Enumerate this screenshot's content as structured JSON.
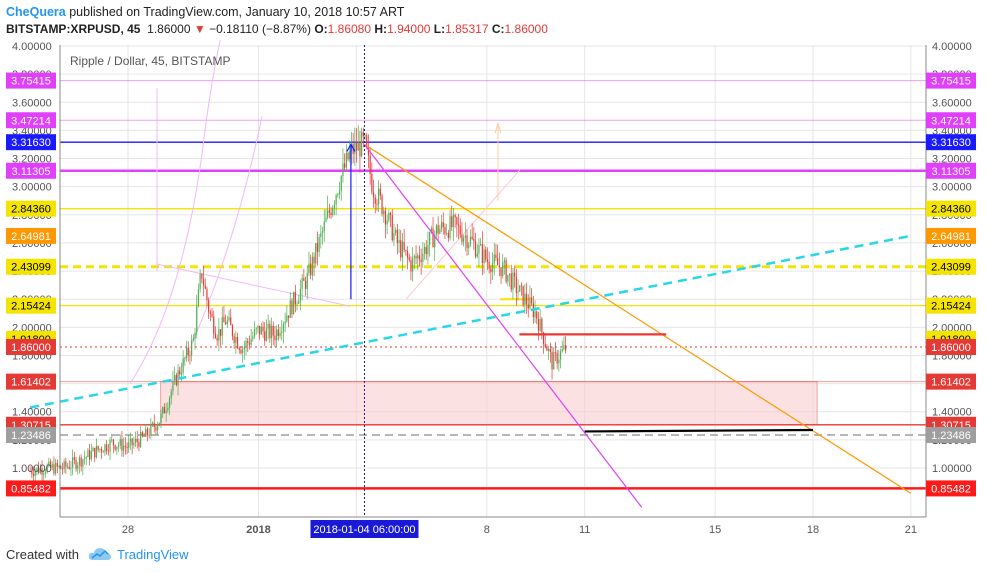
{
  "header": {
    "author": "CheQuera",
    "published_text": "published on TradingView.com, January 10, 2018 10:57 ART",
    "symbol": "BITSTAMP:XRPUSD, 45",
    "last": "1.86000",
    "change": "−0.18110 (−8.87%)",
    "o_label": "O:",
    "o_value": "1.86080",
    "h_label": "H:",
    "h_value": "1.94000",
    "l_label": "L:",
    "l_value": "1.85317",
    "c_label": "C:",
    "c_value": "1.86000"
  },
  "footer": {
    "created_with": "Created with",
    "brand": "TradingView"
  },
  "colors": {
    "up": "#4caf50",
    "down": "#e53935",
    "axis": "#555555",
    "grid": "#e6e6e6",
    "cyan": "#26d7e6",
    "magenta": "#e040fb",
    "orange": "#ff9800",
    "blue": "#1a1aff"
  },
  "chart_data": {
    "type": "candlestick",
    "title": "Ripple / Dollar, 45, BITSTAMP",
    "ylim": [
      0.8,
      4.0
    ],
    "y_ticks": [
      "1.00000",
      "1.20000",
      "1.40000",
      "1.60000",
      "1.80000",
      "2.00000",
      "2.20000",
      "2.40000",
      "2.60000",
      "2.80000",
      "3.00000",
      "3.20000",
      "3.40000",
      "3.60000",
      "3.80000",
      "4.00000"
    ],
    "x_ticks": [
      {
        "label": "28",
        "date": "2017-12-28"
      },
      {
        "label": "2018",
        "date": "2018-01-01"
      },
      {
        "label": "4",
        "date": "2018-01-04"
      },
      {
        "label": "8",
        "date": "2018-01-08"
      },
      {
        "label": "11",
        "date": "2018-01-11"
      },
      {
        "label": "15",
        "date": "2018-01-15"
      },
      {
        "label": "18",
        "date": "2018-01-18"
      },
      {
        "label": "21",
        "date": "2018-01-21"
      }
    ],
    "crosshair": {
      "date_label": "2018-01-04 06:00:00",
      "date": "2018-01-04"
    },
    "horizontal_levels": [
      {
        "value": 3.75415,
        "label": "3.75415",
        "color": "#e040fb",
        "style": "thin"
      },
      {
        "value": 3.47214,
        "label": "3.47214",
        "color": "#e040fb",
        "style": "thin"
      },
      {
        "value": 3.3163,
        "label": "3.31630",
        "color": "#1a1aff",
        "style": "solid"
      },
      {
        "value": 3.11305,
        "label": "3.11305",
        "color": "#e040fb",
        "style": "thick"
      },
      {
        "value": 2.8436,
        "label": "2.84360",
        "color": "#f5e400",
        "style": "solid"
      },
      {
        "value": 2.64981,
        "label": "2.64981",
        "color": "#ff9800",
        "style": "none"
      },
      {
        "value": 2.43099,
        "label": "2.43099",
        "color": "#f5e400",
        "style": "dashed"
      },
      {
        "value": 2.15424,
        "label": "2.15424",
        "color": "#f5e400",
        "style": "solid"
      },
      {
        "value": 1.918,
        "label": "1.91800",
        "color": "#f5e400",
        "style": "none"
      },
      {
        "value": 1.86,
        "label": "1.86000",
        "color": "#e53935",
        "style": "dotted"
      },
      {
        "value": 1.61402,
        "label": "1.61402",
        "color": "#e53935",
        "style": "thin"
      },
      {
        "value": 1.30715,
        "label": "1.30715",
        "color": "#e53935",
        "style": "solid"
      },
      {
        "value": 1.23486,
        "label": "1.23486",
        "color": "#9e9e9e",
        "style": "dashed"
      },
      {
        "value": 0.85482,
        "label": "0.85482",
        "color": "#ff1a1a",
        "style": "thick"
      }
    ],
    "price_path": [
      [
        "2017-12-25T00:00",
        0.98
      ],
      [
        "2017-12-25T12:00",
        1.0
      ],
      [
        "2017-12-26T00:00",
        1.0
      ],
      [
        "2017-12-26T12:00",
        1.05
      ],
      [
        "2017-12-27T00:00",
        1.12
      ],
      [
        "2017-12-27T12:00",
        1.18
      ],
      [
        "2017-12-28T00:00",
        1.15
      ],
      [
        "2017-12-28T12:00",
        1.22
      ],
      [
        "2017-12-29T00:00",
        1.35
      ],
      [
        "2017-12-29T12:00",
        1.65
      ],
      [
        "2017-12-30T00:00",
        1.9
      ],
      [
        "2017-12-30T06:00",
        2.4
      ],
      [
        "2017-12-30T12:00",
        2.1
      ],
      [
        "2017-12-30T18:00",
        1.95
      ],
      [
        "2017-12-31T00:00",
        2.05
      ],
      [
        "2017-12-31T12:00",
        1.85
      ],
      [
        "2018-01-01T00:00",
        1.98
      ],
      [
        "2018-01-01T12:00",
        1.95
      ],
      [
        "2018-01-02T00:00",
        2.15
      ],
      [
        "2018-01-02T12:00",
        2.35
      ],
      [
        "2018-01-03T00:00",
        2.7
      ],
      [
        "2018-01-03T12:00",
        3.05
      ],
      [
        "2018-01-03T20:00",
        3.25
      ],
      [
        "2018-01-04T06:00",
        3.31
      ],
      [
        "2018-01-04T12:00",
        3.0
      ],
      [
        "2018-01-04T20:00",
        2.85
      ],
      [
        "2018-01-05T06:00",
        2.6
      ],
      [
        "2018-01-05T16:00",
        2.45
      ],
      [
        "2018-01-06T02:00",
        2.55
      ],
      [
        "2018-01-06T12:00",
        2.7
      ],
      [
        "2018-01-07T00:00",
        2.72
      ],
      [
        "2018-01-07T12:00",
        2.62
      ],
      [
        "2018-01-08T00:00",
        2.48
      ],
      [
        "2018-01-08T12:00",
        2.42
      ],
      [
        "2018-01-09T00:00",
        2.25
      ],
      [
        "2018-01-09T12:00",
        2.1
      ],
      [
        "2018-01-10T00:00",
        1.75
      ],
      [
        "2018-01-10T10:57",
        1.86
      ]
    ],
    "trendlines": [
      {
        "name": "cyan dashed",
        "from": [
          "2017-12-25T00:00",
          1.43
        ],
        "to": [
          "2018-01-21T00:00",
          2.65
        ],
        "color": "#26d7e6"
      },
      {
        "name": "orange",
        "from": [
          "2018-01-04T06:00",
          3.3
        ],
        "to": [
          "2018-01-21T00:00",
          0.82
        ],
        "color": "#ff9800"
      },
      {
        "name": "magenta",
        "from": [
          "2018-01-04T06:00",
          3.3
        ],
        "to": [
          "2018-01-12T18:00",
          0.72
        ],
        "color": "#e040fb"
      },
      {
        "name": "red",
        "from": [
          "2018-01-09T00:00",
          1.95
        ],
        "to": [
          "2018-01-13T12:00",
          1.95
        ],
        "color": "#e53935"
      },
      {
        "name": "black",
        "from": [
          "2018-01-11T00:00",
          1.26
        ],
        "to": [
          "2018-01-18T00:00",
          1.27
        ],
        "color": "#000000"
      }
    ],
    "zone": {
      "from_date": "2017-12-29T00:00",
      "to_date": "2018-01-18T03:00",
      "low": 1.307,
      "high": 1.614,
      "color": "#f8c8c8"
    }
  }
}
